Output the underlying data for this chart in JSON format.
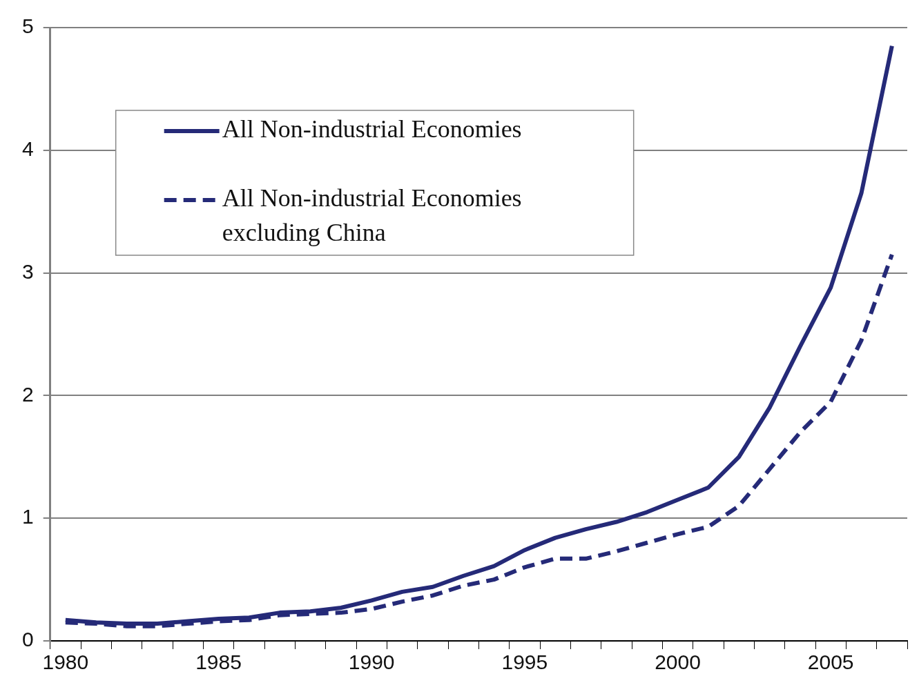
{
  "chart_data": {
    "type": "line",
    "categories": [
      "1980",
      null,
      null,
      null,
      null,
      "1985",
      null,
      null,
      null,
      null,
      "1990",
      null,
      null,
      null,
      null,
      "1995",
      null,
      null,
      null,
      null,
      "2000",
      null,
      null,
      null,
      null,
      "2005",
      null,
      null
    ],
    "series": [
      {
        "name": "All Non-industrial Economies",
        "color": "#252a78",
        "line_style": "solid",
        "values": [
          0.17,
          0.15,
          0.14,
          0.14,
          0.16,
          0.18,
          0.19,
          0.23,
          0.24,
          0.27,
          0.33,
          0.4,
          0.44,
          0.53,
          0.61,
          0.74,
          0.84,
          0.91,
          0.97,
          1.05,
          1.15,
          1.25,
          1.5,
          1.9,
          2.4,
          2.88,
          3.65,
          4.85
        ]
      },
      {
        "name": "All Non-industrial Economies excluding China",
        "color": "#252a78",
        "line_style": "dashed",
        "values": [
          0.15,
          0.14,
          0.12,
          0.12,
          0.14,
          0.16,
          0.17,
          0.21,
          0.22,
          0.23,
          0.26,
          0.32,
          0.37,
          0.45,
          0.5,
          0.6,
          0.67,
          0.67,
          0.73,
          0.8,
          0.87,
          0.93,
          1.1,
          1.4,
          1.7,
          1.95,
          2.45,
          3.15
        ]
      }
    ],
    "ylim": [
      0,
      5
    ],
    "yticks": [
      0,
      1,
      2,
      3,
      4,
      5
    ],
    "grid": "y",
    "legend": "top left",
    "marker": "none"
  }
}
